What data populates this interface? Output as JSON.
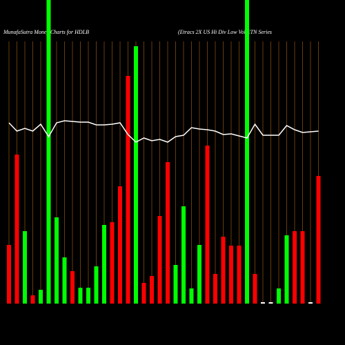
{
  "chart_data": {
    "type": "bar",
    "title": "MunafaSutra  Money  Charts for HDLB",
    "subtitle": "(Etracs 2X  US Hi Div   Low Vol ETN  Series",
    "categories": [
      null,
      null,
      null,
      null,
      null,
      null,
      null,
      null,
      null,
      null,
      null,
      null,
      null,
      null,
      null,
      null,
      null,
      null,
      null,
      null,
      null,
      null,
      null,
      null,
      null,
      null,
      null,
      null,
      null,
      null,
      null,
      null,
      null,
      null,
      null,
      null,
      null,
      null,
      null,
      null
    ],
    "series": [
      {
        "values": [
          85,
          216,
          105,
          12,
          20,
          440,
          125,
          67,
          47,
          23,
          23,
          54,
          114,
          118,
          170,
          330,
          373,
          30,
          40,
          127,
          205,
          56,
          141,
          22,
          85,
          229,
          43,
          97,
          84,
          84,
          440,
          43,
          2,
          2,
          22,
          99,
          105,
          105,
          2,
          185
        ],
        "colors": [
          "#ff0000",
          "#ff0000",
          "#00ff00",
          "#ff0000",
          "#00ff00",
          "#00ff00",
          "#00ff00",
          "#00ff00",
          "#ff0000",
          "#00ff00",
          "#00ff00",
          "#00ff00",
          "#00ff00",
          "#ff0000",
          "#ff0000",
          "#ff0000",
          "#00ff00",
          "#ff0000",
          "#ff0000",
          "#ff0000",
          "#ff0000",
          "#00ff00",
          "#00ff00",
          "#00ff00",
          "#00ff00",
          "#ff0000",
          "#ff0000",
          "#ff0000",
          "#ff0000",
          "#ff0000",
          "#00ff00",
          "#ff0000",
          "#ffffff",
          "#ffffff",
          "#00ff00",
          "#00ff00",
          "#ff0000",
          "#ff0000",
          "#ffffff",
          "#ff0000"
        ]
      },
      {
        "type": "line",
        "color": "#ffffff",
        "values": [
          262,
          250,
          254,
          250,
          260,
          242,
          262,
          265,
          264,
          263,
          263,
          259,
          259,
          260,
          262,
          245,
          234,
          240,
          236,
          238,
          234,
          242,
          244,
          255,
          253,
          252,
          250,
          245,
          246,
          243,
          240,
          260,
          244,
          244,
          244,
          258,
          252,
          248,
          249,
          250
        ]
      }
    ],
    "ylim": [
      0,
      440
    ]
  }
}
